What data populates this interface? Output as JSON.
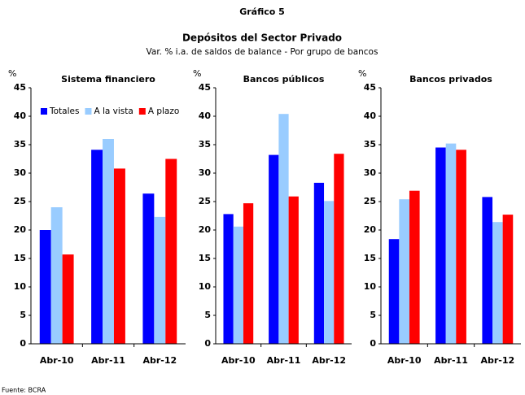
{
  "header": {
    "figure": "Gráfico 5",
    "title": "Depósitos del Sector Privado",
    "subtitle": "Var. % i.a. de saldos de balance - Por grupo de bancos"
  },
  "source": "Fuente: BCRA",
  "chart_data": [
    {
      "type": "bar",
      "title": "Sistema financiero",
      "y_label": "%",
      "legend": "upper left",
      "categories": [
        "Abr-10",
        "Abr-11",
        "Abr-12"
      ],
      "series": [
        {
          "name": "Totales",
          "color": "#0000ff",
          "values": [
            20,
            34.1,
            26.4
          ]
        },
        {
          "name": "A la vista",
          "color": "#99ccff",
          "values": [
            24,
            36,
            22.3
          ]
        },
        {
          "name": "A plazo",
          "color": "#ff0000",
          "values": [
            15.7,
            30.8,
            32.5
          ]
        }
      ],
      "ylim": [
        0,
        45
      ],
      "yticks": [
        0,
        5,
        10,
        15,
        20,
        25,
        30,
        35,
        40,
        45
      ]
    },
    {
      "type": "bar",
      "title": "Bancos públicos",
      "y_label": "%",
      "categories": [
        "Abr-10",
        "Abr-11",
        "Abr-12"
      ],
      "series": [
        {
          "color": "#0000ff",
          "values": [
            22.8,
            33.2,
            28.3
          ]
        },
        {
          "color": "#99ccff",
          "values": [
            20.6,
            40.4,
            25.1
          ]
        },
        {
          "color": "#ff0000",
          "values": [
            24.7,
            25.9,
            33.4
          ]
        }
      ],
      "ylim": [
        0,
        45
      ],
      "yticks": [
        0,
        5,
        10,
        15,
        20,
        25,
        30,
        35,
        40,
        45
      ]
    },
    {
      "type": "bar",
      "title": "Bancos privados",
      "y_label": "%",
      "categories": [
        "Abr-10",
        "Abr-11",
        "Abr-12"
      ],
      "series": [
        {
          "color": "#0000ff",
          "values": [
            18.4,
            34.5,
            25.8
          ]
        },
        {
          "color": "#99ccff",
          "values": [
            25.4,
            35.2,
            21.4
          ]
        },
        {
          "color": "#ff0000",
          "values": [
            26.9,
            34.1,
            22.7
          ]
        }
      ],
      "ylim": [
        0,
        45
      ],
      "yticks": [
        0,
        5,
        10,
        15,
        20,
        25,
        30,
        35,
        40,
        45
      ]
    }
  ]
}
